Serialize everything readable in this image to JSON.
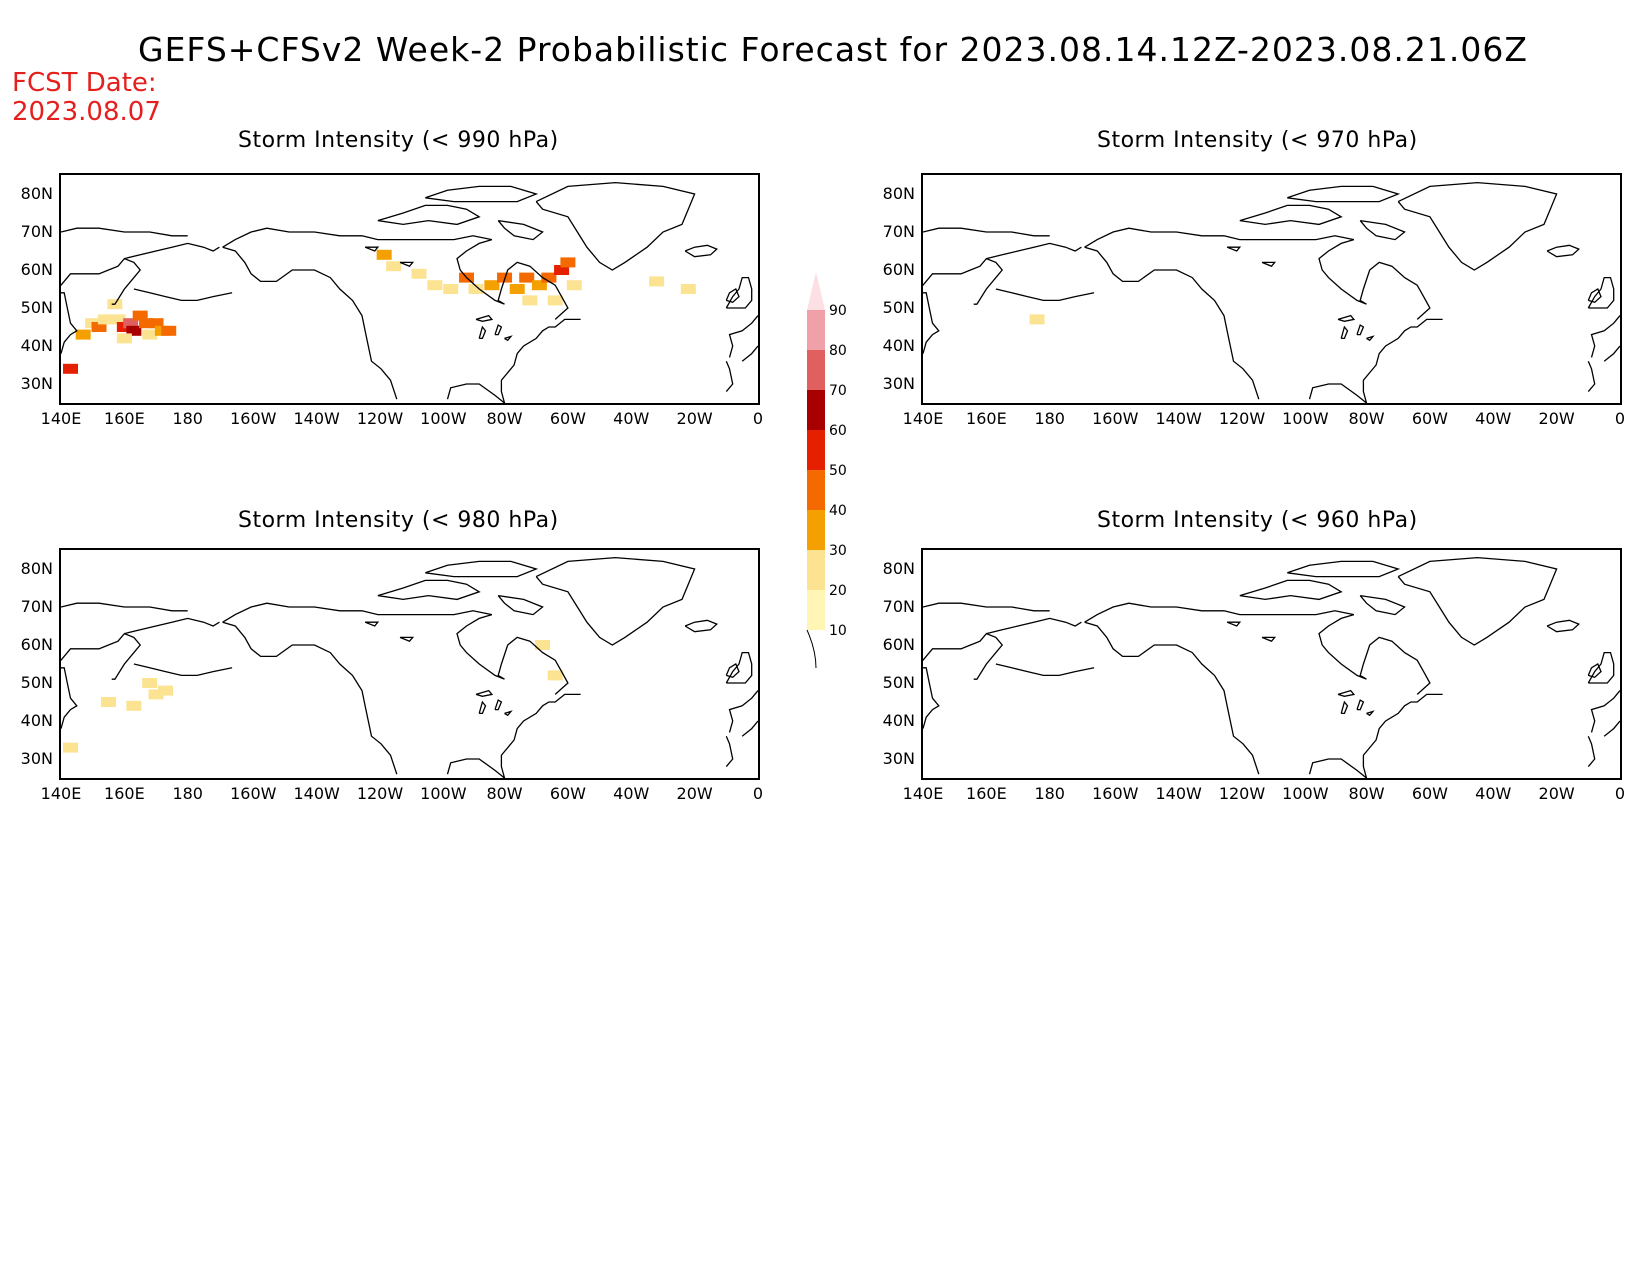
{
  "header": {
    "title": "GEFS+CFSv2 Week-2 Probabilistic Forecast for 2023.08.14.12Z-2023.08.21.06Z",
    "fcst_label": "FCST Date:",
    "fcst_date": "2023.08.07"
  },
  "lat_ticks": [
    "80N",
    "70N",
    "60N",
    "50N",
    "40N",
    "30N"
  ],
  "lon_ticks": [
    "140E",
    "160E",
    "180",
    "160W",
    "140W",
    "120W",
    "100W",
    "80W",
    "60W",
    "40W",
    "20W",
    "0"
  ],
  "panels": [
    {
      "id": "p990",
      "title": "Storm Intensity (< 990 hPa)"
    },
    {
      "id": "p970",
      "title": "Storm Intensity (< 970 hPa)"
    },
    {
      "id": "p980",
      "title": "Storm Intensity (< 980 hPa)"
    },
    {
      "id": "p960",
      "title": "Storm Intensity (< 960 hPa)"
    }
  ],
  "colorbar": {
    "levels": [
      "10",
      "20",
      "30",
      "40",
      "50",
      "60",
      "70",
      "80",
      "90"
    ],
    "colors": [
      "#fff5b5",
      "#fbe392",
      "#f4a000",
      "#f46a00",
      "#e42000",
      "#a80000",
      "#e06060",
      "#f0a0a8",
      "#fde0e4"
    ]
  },
  "chart_data": {
    "type": "heatmap",
    "units": "probability (%)",
    "lon_range": [
      "140E",
      "0"
    ],
    "lat_range": [
      "25N",
      "85N"
    ],
    "panels": [
      {
        "id": "p990",
        "title": "Storm Intensity (< 990 hPa)",
        "cells": [
          {
            "lon": 143,
            "lat": 34,
            "p": 50
          },
          {
            "lon": 147,
            "lat": 43,
            "p": 30
          },
          {
            "lon": 150,
            "lat": 46,
            "p": 20
          },
          {
            "lon": 152,
            "lat": 45,
            "p": 40
          },
          {
            "lon": 154,
            "lat": 47,
            "p": 20
          },
          {
            "lon": 158,
            "lat": 47,
            "p": 20
          },
          {
            "lon": 160,
            "lat": 45,
            "p": 50
          },
          {
            "lon": 162,
            "lat": 46,
            "p": 70
          },
          {
            "lon": 163,
            "lat": 44,
            "p": 60
          },
          {
            "lon": 165,
            "lat": 48,
            "p": 40
          },
          {
            "lon": 167,
            "lat": 46,
            "p": 40
          },
          {
            "lon": 168,
            "lat": 43,
            "p": 20
          },
          {
            "lon": 170,
            "lat": 46,
            "p": 40
          },
          {
            "lon": 172,
            "lat": 44,
            "p": 30
          },
          {
            "lon": 174,
            "lat": 44,
            "p": 40
          },
          {
            "lon": 160,
            "lat": 42,
            "p": 20
          },
          {
            "lon": 157,
            "lat": 51,
            "p": 20
          },
          {
            "lon": 242,
            "lat": 64,
            "p": 30
          },
          {
            "lon": 245,
            "lat": 61,
            "p": 20
          },
          {
            "lon": 253,
            "lat": 59,
            "p": 20
          },
          {
            "lon": 258,
            "lat": 56,
            "p": 20
          },
          {
            "lon": 263,
            "lat": 55,
            "p": 20
          },
          {
            "lon": 268,
            "lat": 58,
            "p": 40
          },
          {
            "lon": 271,
            "lat": 55,
            "p": 20
          },
          {
            "lon": 276,
            "lat": 56,
            "p": 30
          },
          {
            "lon": 280,
            "lat": 58,
            "p": 40
          },
          {
            "lon": 284,
            "lat": 55,
            "p": 30
          },
          {
            "lon": 287,
            "lat": 58,
            "p": 40
          },
          {
            "lon": 291,
            "lat": 56,
            "p": 30
          },
          {
            "lon": 294,
            "lat": 58,
            "p": 40
          },
          {
            "lon": 298,
            "lat": 60,
            "p": 50
          },
          {
            "lon": 300,
            "lat": 62,
            "p": 40
          },
          {
            "lon": 302,
            "lat": 56,
            "p": 20
          },
          {
            "lon": 296,
            "lat": 52,
            "p": 20
          },
          {
            "lon": 288,
            "lat": 52,
            "p": 20
          },
          {
            "lon": 328,
            "lat": 57,
            "p": 20
          },
          {
            "lon": 338,
            "lat": 55,
            "p": 20
          }
        ]
      },
      {
        "id": "p970",
        "title": "Storm Intensity (< 970 hPa)",
        "cells": [
          {
            "lon": 176,
            "lat": 47,
            "p": 20
          }
        ]
      },
      {
        "id": "p980",
        "title": "Storm Intensity (< 980 hPa)",
        "cells": [
          {
            "lon": 143,
            "lat": 33,
            "p": 20
          },
          {
            "lon": 155,
            "lat": 45,
            "p": 20
          },
          {
            "lon": 163,
            "lat": 44,
            "p": 20
          },
          {
            "lon": 170,
            "lat": 47,
            "p": 20
          },
          {
            "lon": 173,
            "lat": 48,
            "p": 20
          },
          {
            "lon": 168,
            "lat": 50,
            "p": 20
          },
          {
            "lon": 292,
            "lat": 60,
            "p": 20
          },
          {
            "lon": 296,
            "lat": 52,
            "p": 20
          }
        ]
      },
      {
        "id": "p960",
        "title": "Storm Intensity (< 960 hPa)",
        "cells": []
      }
    ]
  }
}
